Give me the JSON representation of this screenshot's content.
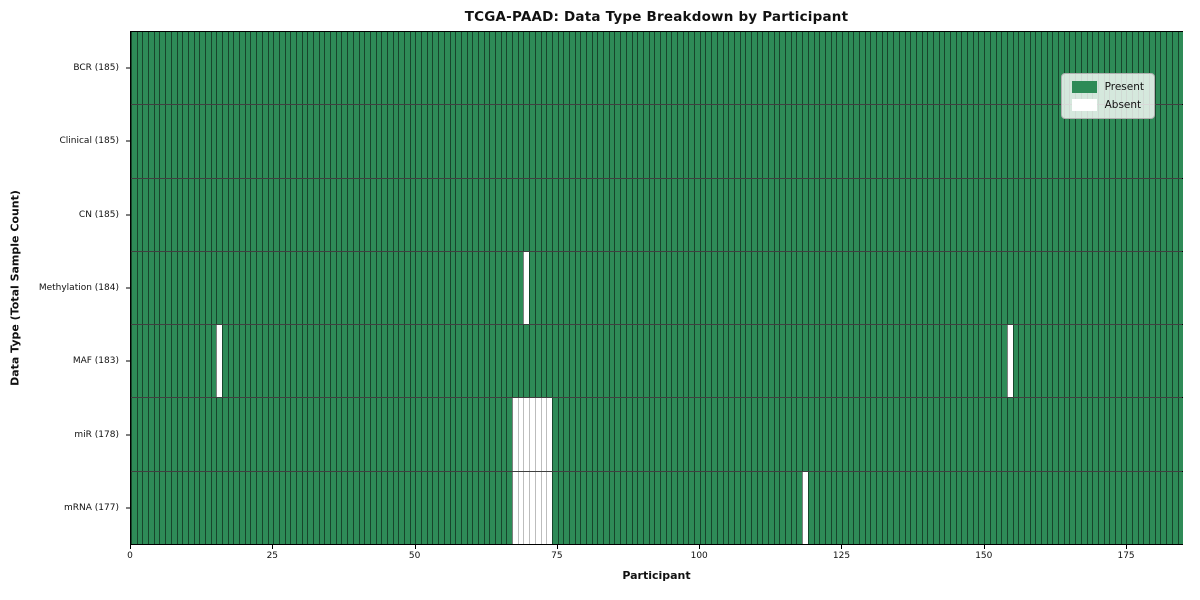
{
  "title": "TCGA-PAAD: Data Type Breakdown by Participant",
  "chart_data": {
    "type": "heatmap",
    "title": "TCGA-PAAD: Data Type Breakdown by Participant",
    "xlabel": "Participant",
    "ylabel": "Data Type (Total Sample Count)",
    "x_ticks": [
      0,
      25,
      50,
      75,
      100,
      125,
      150,
      175
    ],
    "x_range": [
      0,
      185
    ],
    "n_participants": 185,
    "grid": "per-cell vertical edges and row separator lines",
    "legend": {
      "position": "upper right",
      "entries": [
        {
          "label": "Present",
          "color": "#2e8b57"
        },
        {
          "label": "Absent",
          "color": "#ffffff"
        }
      ]
    },
    "rows": [
      {
        "label": "BCR (185)",
        "data_type": "BCR",
        "total_sample_count": 185,
        "absent_participants": []
      },
      {
        "label": "Clinical (185)",
        "data_type": "Clinical",
        "total_sample_count": 185,
        "absent_participants": []
      },
      {
        "label": "CN (185)",
        "data_type": "CN",
        "total_sample_count": 185,
        "absent_participants": []
      },
      {
        "label": "Methylation (184)",
        "data_type": "Methylation",
        "total_sample_count": 184,
        "absent_participants": [
          69
        ]
      },
      {
        "label": "MAF (183)",
        "data_type": "MAF",
        "total_sample_count": 183,
        "absent_participants": [
          15,
          154
        ]
      },
      {
        "label": "miR (178)",
        "data_type": "miR",
        "total_sample_count": 178,
        "absent_participants": [
          67,
          68,
          69,
          70,
          71,
          72,
          73
        ]
      },
      {
        "label": "mRNA (177)",
        "data_type": "mRNA",
        "total_sample_count": 177,
        "absent_participants": [
          67,
          68,
          69,
          70,
          71,
          72,
          73,
          118
        ]
      }
    ],
    "colors": {
      "present": "#2e8b57",
      "absent": "#ffffff",
      "present_cell_edge": "rgba(0,0,0,0.5)",
      "absent_cell_edge": "#bdbdbd",
      "row_separator": "rgba(0,0,0,0.75)",
      "axis_spine": "#000000"
    }
  }
}
